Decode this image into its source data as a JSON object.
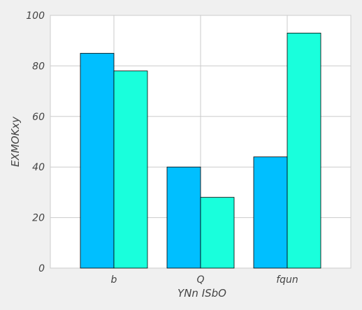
{
  "chart_data": {
    "type": "bar",
    "title": "",
    "xlabel": "YNn ISbO",
    "ylabel": "EXMOKxy",
    "categories": [
      "b",
      "Q",
      "fqun"
    ],
    "series": [
      {
        "values": [
          85,
          40,
          44
        ],
        "color": "#00bfff"
      },
      {
        "values": [
          78,
          28,
          93
        ],
        "color": "#19ffdc"
      }
    ],
    "ylim": [
      0,
      100
    ],
    "yticks": [
      0,
      20,
      40,
      60,
      80,
      100
    ],
    "grid": true,
    "legend": "none"
  }
}
